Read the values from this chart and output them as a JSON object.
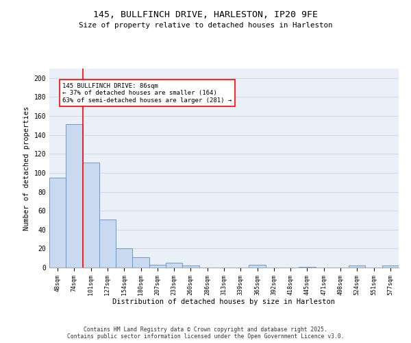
{
  "title": "145, BULLFINCH DRIVE, HARLESTON, IP20 9FE",
  "subtitle": "Size of property relative to detached houses in Harleston",
  "xlabel": "Distribution of detached houses by size in Harleston",
  "ylabel": "Number of detached properties",
  "bar_color": "#c9d9f0",
  "bar_edge_color": "#5b8fc9",
  "categories": [
    "48sqm",
    "74sqm",
    "101sqm",
    "127sqm",
    "154sqm",
    "180sqm",
    "207sqm",
    "233sqm",
    "260sqm",
    "286sqm",
    "313sqm",
    "339sqm",
    "365sqm",
    "392sqm",
    "418sqm",
    "445sqm",
    "471sqm",
    "498sqm",
    "524sqm",
    "551sqm",
    "577sqm"
  ],
  "values": [
    95,
    151,
    111,
    51,
    20,
    11,
    3,
    5,
    2,
    0,
    0,
    0,
    3,
    0,
    0,
    1,
    0,
    0,
    2,
    0,
    2
  ],
  "ylim": [
    0,
    210
  ],
  "yticks": [
    0,
    20,
    40,
    60,
    80,
    100,
    120,
    140,
    160,
    180,
    200
  ],
  "red_line_x": 1.5,
  "annotation_line1": "145 BULLFINCH DRIVE: 86sqm",
  "annotation_line2": "← 37% of detached houses are smaller (164)",
  "annotation_line3": "63% of semi-detached houses are larger (281) →",
  "grid_color": "#d0d8e8",
  "background_color": "#eaf0f8",
  "footer_line1": "Contains HM Land Registry data © Crown copyright and database right 2025.",
  "footer_line2": "Contains public sector information licensed under the Open Government Licence v3.0."
}
